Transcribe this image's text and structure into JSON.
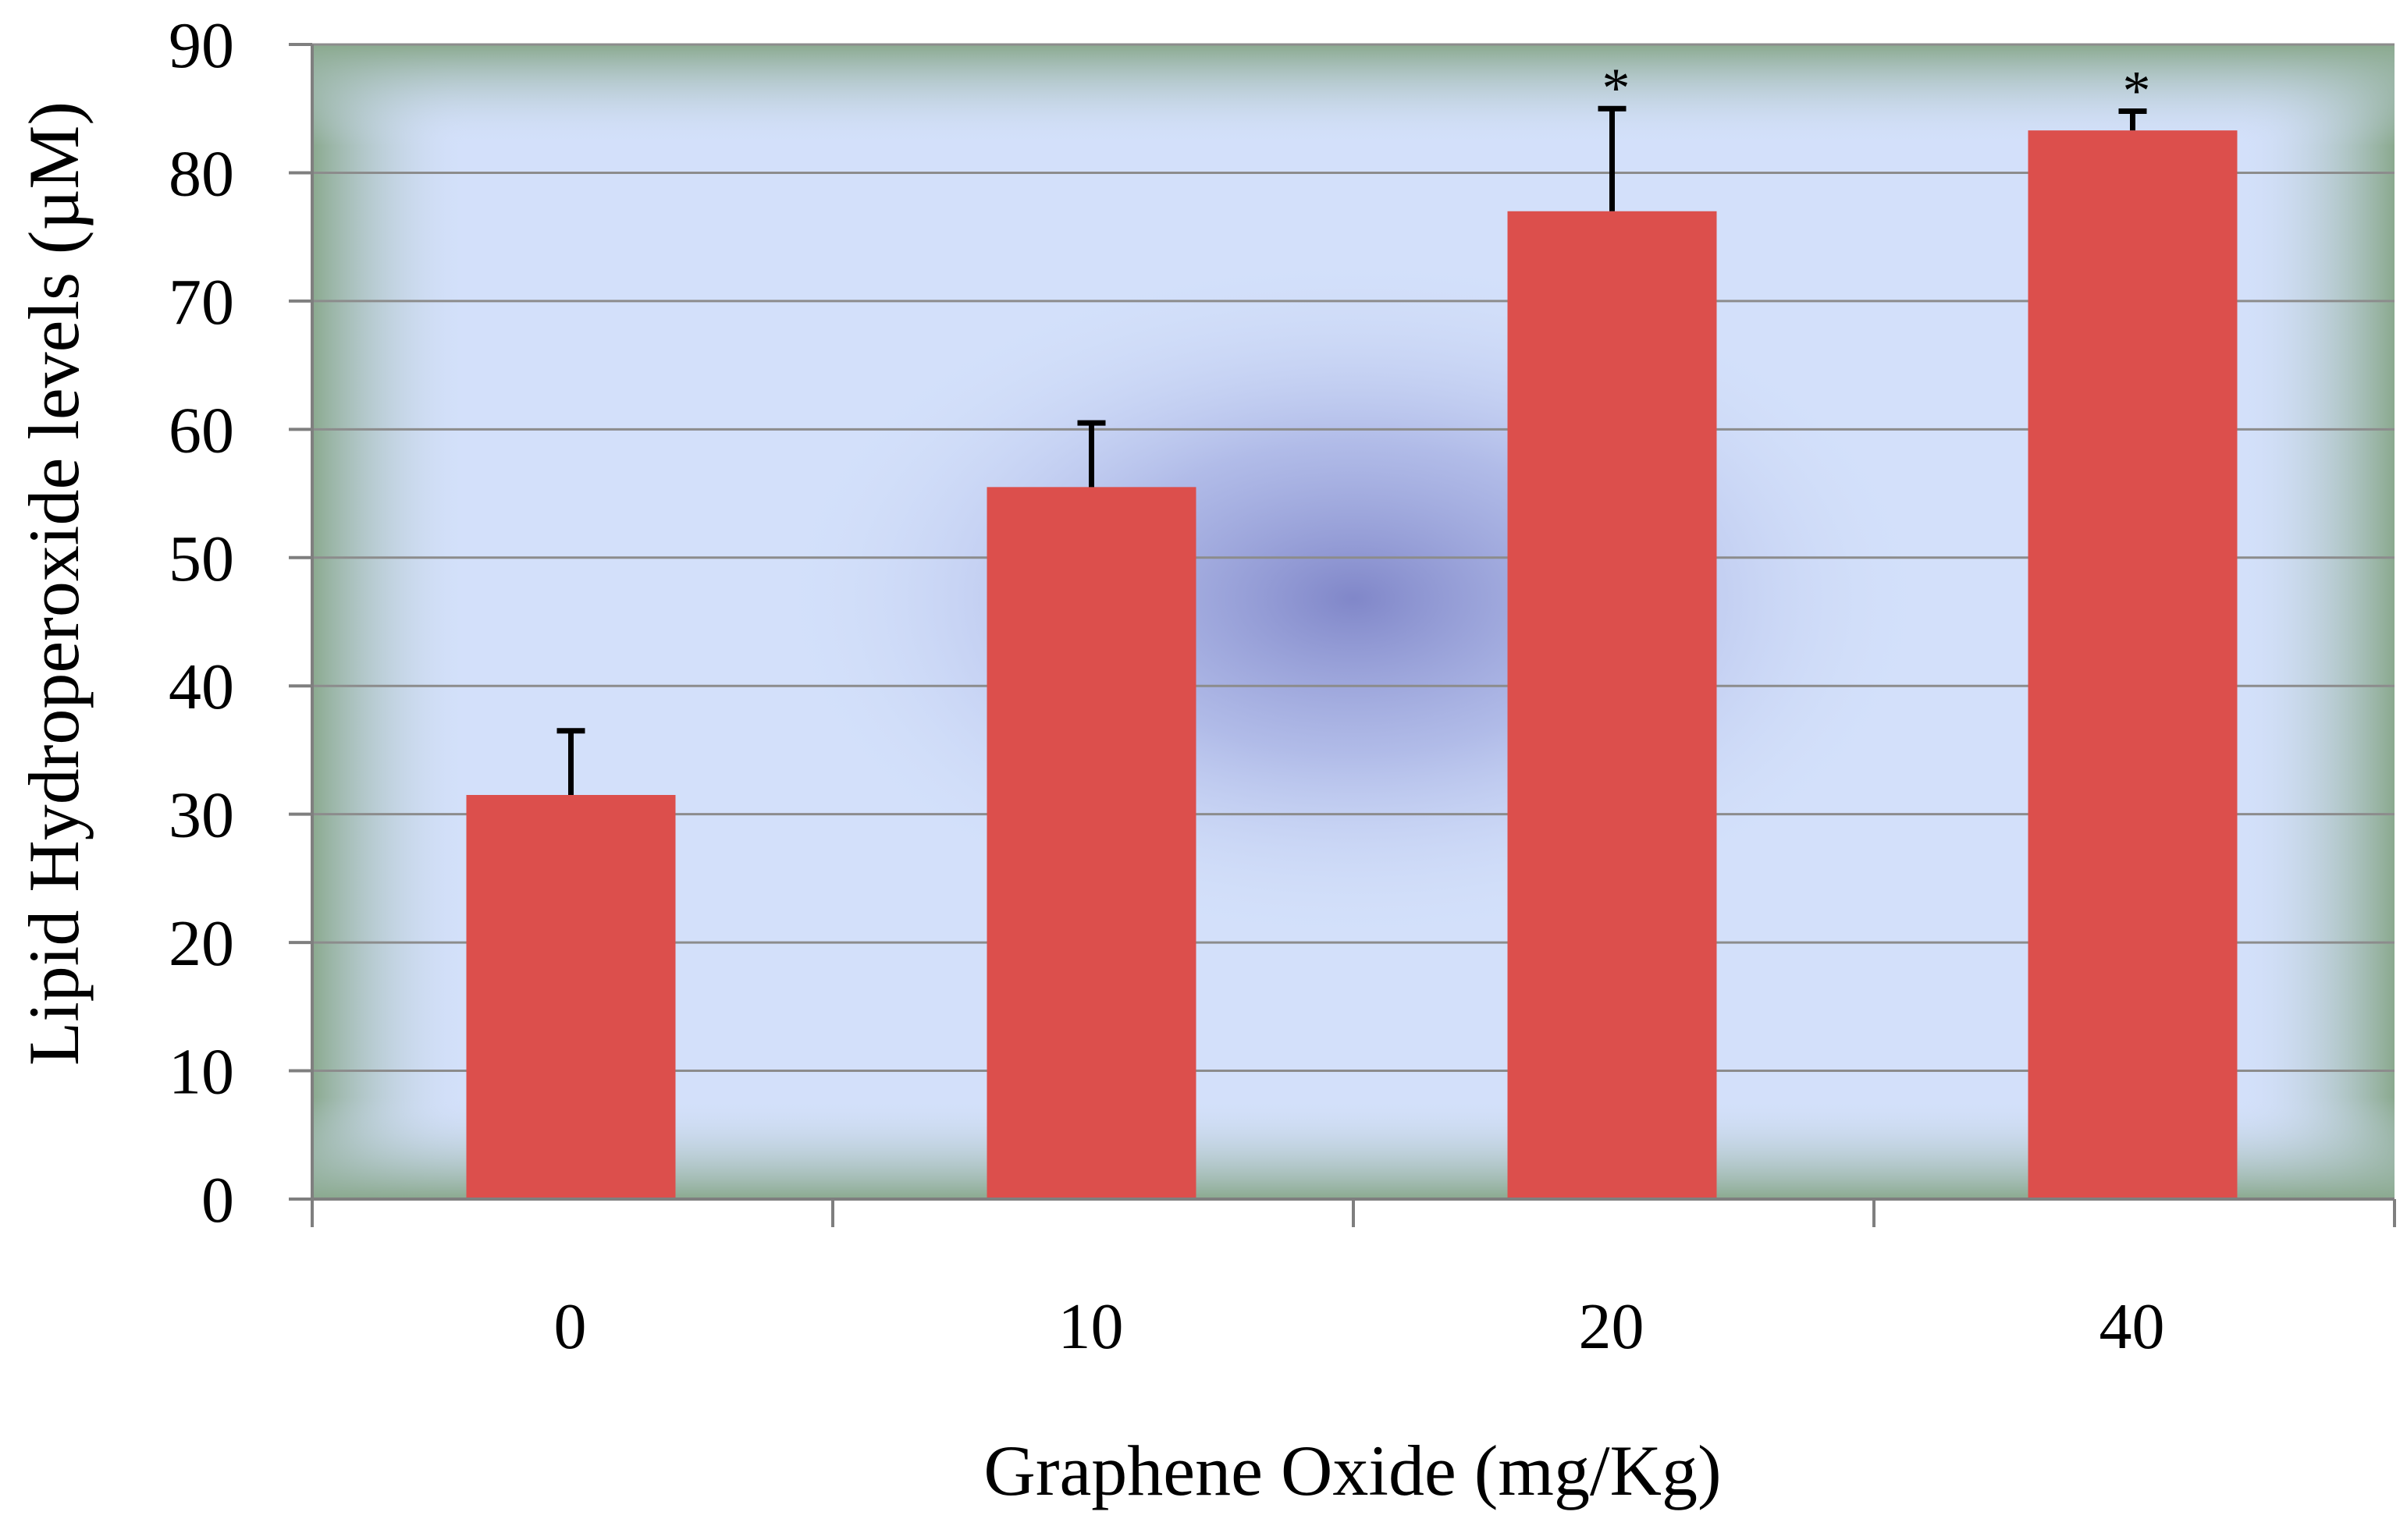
{
  "chart_data": {
    "type": "bar",
    "title": "",
    "xlabel": "Graphene Oxide (mg/Kg)",
    "ylabel": "Lipid Hydroperoxide levels (µM)",
    "categories": [
      "0",
      "10",
      "20",
      "40"
    ],
    "values": [
      31.5,
      55.5,
      77,
      83.3
    ],
    "error_bars": [
      5,
      5,
      8,
      1.5
    ],
    "annotations": [
      "",
      "",
      "*",
      "*"
    ],
    "ylim": [
      0,
      90
    ],
    "yticks": [
      "0",
      "10",
      "20",
      "30",
      "40",
      "50",
      "60",
      "70",
      "80",
      "90"
    ],
    "grid": true,
    "legend": "none",
    "colors": {
      "bar": "#dc4f4c",
      "plot_center": "#8b93cf",
      "plot_mid": "#d3e0fa",
      "plot_edge": "#8aa98e",
      "gridline": "#8c8c8c",
      "axis": "#7f7f7f",
      "errorbar": "#000000"
    }
  }
}
